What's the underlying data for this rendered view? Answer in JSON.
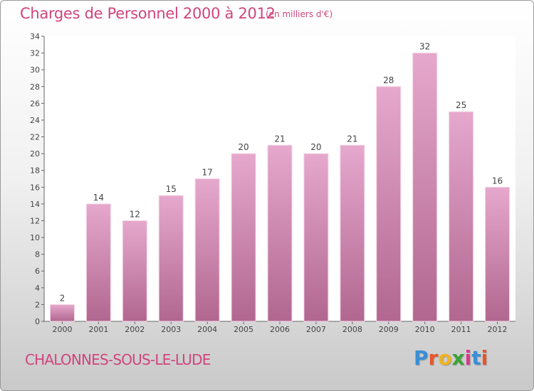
{
  "title": "Charges de Personnel 2000 à 2012",
  "subtitle": "(en milliers d'€)",
  "commune": "CHALONNES-SOUS-LE-LUDE",
  "logo": "Proxiti",
  "colors": {
    "title": "#d0457d",
    "bar_top": "#e6a8cd",
    "bar_bottom": "#b1678f",
    "logo": [
      "#3a8fd6",
      "#e8552c",
      "#f0b323",
      "#3aa335",
      "#d93a8b",
      "#3a8fd6",
      "#e8552c"
    ]
  },
  "chart_data": {
    "type": "bar",
    "title": "Charges de Personnel 2000 à 2012",
    "subtitle": "(en milliers d'€)",
    "xlabel": "",
    "ylabel": "",
    "categories": [
      "2000",
      "2001",
      "2002",
      "2003",
      "2004",
      "2005",
      "2006",
      "2007",
      "2008",
      "2009",
      "2010",
      "2011",
      "2012"
    ],
    "values": [
      2,
      14,
      12,
      15,
      17,
      20,
      21,
      20,
      21,
      28,
      32,
      25,
      16
    ],
    "ylim": [
      0,
      34
    ],
    "yticks": [
      0,
      2,
      4,
      6,
      8,
      10,
      12,
      14,
      16,
      18,
      20,
      22,
      24,
      26,
      28,
      30,
      32,
      34
    ],
    "grid": false,
    "legend": "none"
  }
}
